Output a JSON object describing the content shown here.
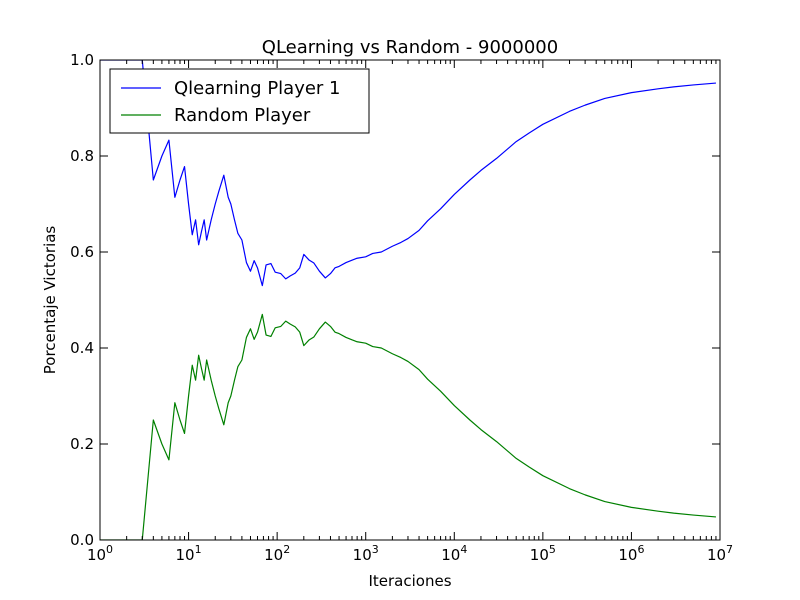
{
  "chart_data": {
    "type": "line",
    "title": "QLearning vs Random - 9000000",
    "xlabel": "Iteraciones",
    "ylabel": "Porcentaje Victorias",
    "xscale": "log",
    "xlim": [
      1,
      10000000
    ],
    "ylim": [
      0.0,
      1.0
    ],
    "grid": false,
    "legend_position": "top-left",
    "xticks": [
      {
        "base": "10",
        "exp": "0"
      },
      {
        "base": "10",
        "exp": "1"
      },
      {
        "base": "10",
        "exp": "2"
      },
      {
        "base": "10",
        "exp": "3"
      },
      {
        "base": "10",
        "exp": "4"
      },
      {
        "base": "10",
        "exp": "5"
      },
      {
        "base": "10",
        "exp": "6"
      },
      {
        "base": "10",
        "exp": "7"
      }
    ],
    "yticks": [
      "0.0",
      "0.2",
      "0.4",
      "0.6",
      "0.8",
      "1.0"
    ],
    "series": [
      {
        "name": "Qlearning Player 1",
        "color": "#0000ff",
        "x": [
          1,
          2,
          3,
          4,
          5,
          6,
          7,
          8,
          9,
          10,
          11,
          12,
          13,
          14,
          15,
          16,
          18,
          20,
          22,
          25,
          28,
          30,
          33,
          36,
          40,
          45,
          50,
          55,
          60,
          68,
          75,
          85,
          95,
          110,
          125,
          140,
          160,
          180,
          200,
          230,
          260,
          300,
          350,
          400,
          450,
          500,
          600,
          700,
          800,
          1000,
          1200,
          1500,
          2000,
          2500,
          3000,
          4000,
          5000,
          7000,
          10000,
          15000,
          20000,
          30000,
          50000,
          70000,
          100000,
          200000,
          300000,
          500000,
          1000000,
          2000000,
          3000000,
          5000000,
          9000000
        ],
        "y": [
          1.0,
          1.0,
          1.0,
          0.75,
          0.8,
          0.833,
          0.714,
          0.75,
          0.778,
          0.7,
          0.636,
          0.667,
          0.615,
          0.643,
          0.667,
          0.625,
          0.667,
          0.7,
          0.727,
          0.76,
          0.714,
          0.7,
          0.667,
          0.639,
          0.625,
          0.578,
          0.56,
          0.582,
          0.567,
          0.53,
          0.573,
          0.576,
          0.558,
          0.555,
          0.544,
          0.55,
          0.556,
          0.567,
          0.595,
          0.583,
          0.577,
          0.56,
          0.546,
          0.555,
          0.567,
          0.57,
          0.578,
          0.583,
          0.587,
          0.59,
          0.597,
          0.6,
          0.612,
          0.62,
          0.628,
          0.645,
          0.665,
          0.69,
          0.72,
          0.75,
          0.77,
          0.795,
          0.83,
          0.848,
          0.866,
          0.893,
          0.906,
          0.92,
          0.932,
          0.94,
          0.944,
          0.948,
          0.952
        ]
      },
      {
        "name": "Random Player",
        "color": "#008000",
        "x": [
          1,
          2,
          3,
          4,
          5,
          6,
          7,
          8,
          9,
          10,
          11,
          12,
          13,
          14,
          15,
          16,
          18,
          20,
          22,
          25,
          28,
          30,
          33,
          36,
          40,
          45,
          50,
          55,
          60,
          68,
          75,
          85,
          95,
          110,
          125,
          140,
          160,
          180,
          200,
          230,
          260,
          300,
          350,
          400,
          450,
          500,
          600,
          700,
          800,
          1000,
          1200,
          1500,
          2000,
          2500,
          3000,
          4000,
          5000,
          7000,
          10000,
          15000,
          20000,
          30000,
          50000,
          70000,
          100000,
          200000,
          300000,
          500000,
          1000000,
          2000000,
          3000000,
          5000000,
          9000000
        ],
        "y": [
          0.0,
          0.0,
          0.0,
          0.25,
          0.2,
          0.167,
          0.286,
          0.25,
          0.222,
          0.3,
          0.364,
          0.333,
          0.385,
          0.357,
          0.333,
          0.375,
          0.333,
          0.3,
          0.273,
          0.24,
          0.286,
          0.3,
          0.333,
          0.361,
          0.375,
          0.422,
          0.44,
          0.418,
          0.433,
          0.47,
          0.427,
          0.424,
          0.442,
          0.445,
          0.456,
          0.45,
          0.444,
          0.433,
          0.405,
          0.417,
          0.423,
          0.44,
          0.454,
          0.445,
          0.433,
          0.43,
          0.422,
          0.417,
          0.413,
          0.41,
          0.403,
          0.4,
          0.388,
          0.38,
          0.372,
          0.355,
          0.335,
          0.31,
          0.28,
          0.25,
          0.23,
          0.205,
          0.17,
          0.152,
          0.134,
          0.107,
          0.094,
          0.08,
          0.068,
          0.06,
          0.056,
          0.052,
          0.048
        ]
      }
    ]
  }
}
